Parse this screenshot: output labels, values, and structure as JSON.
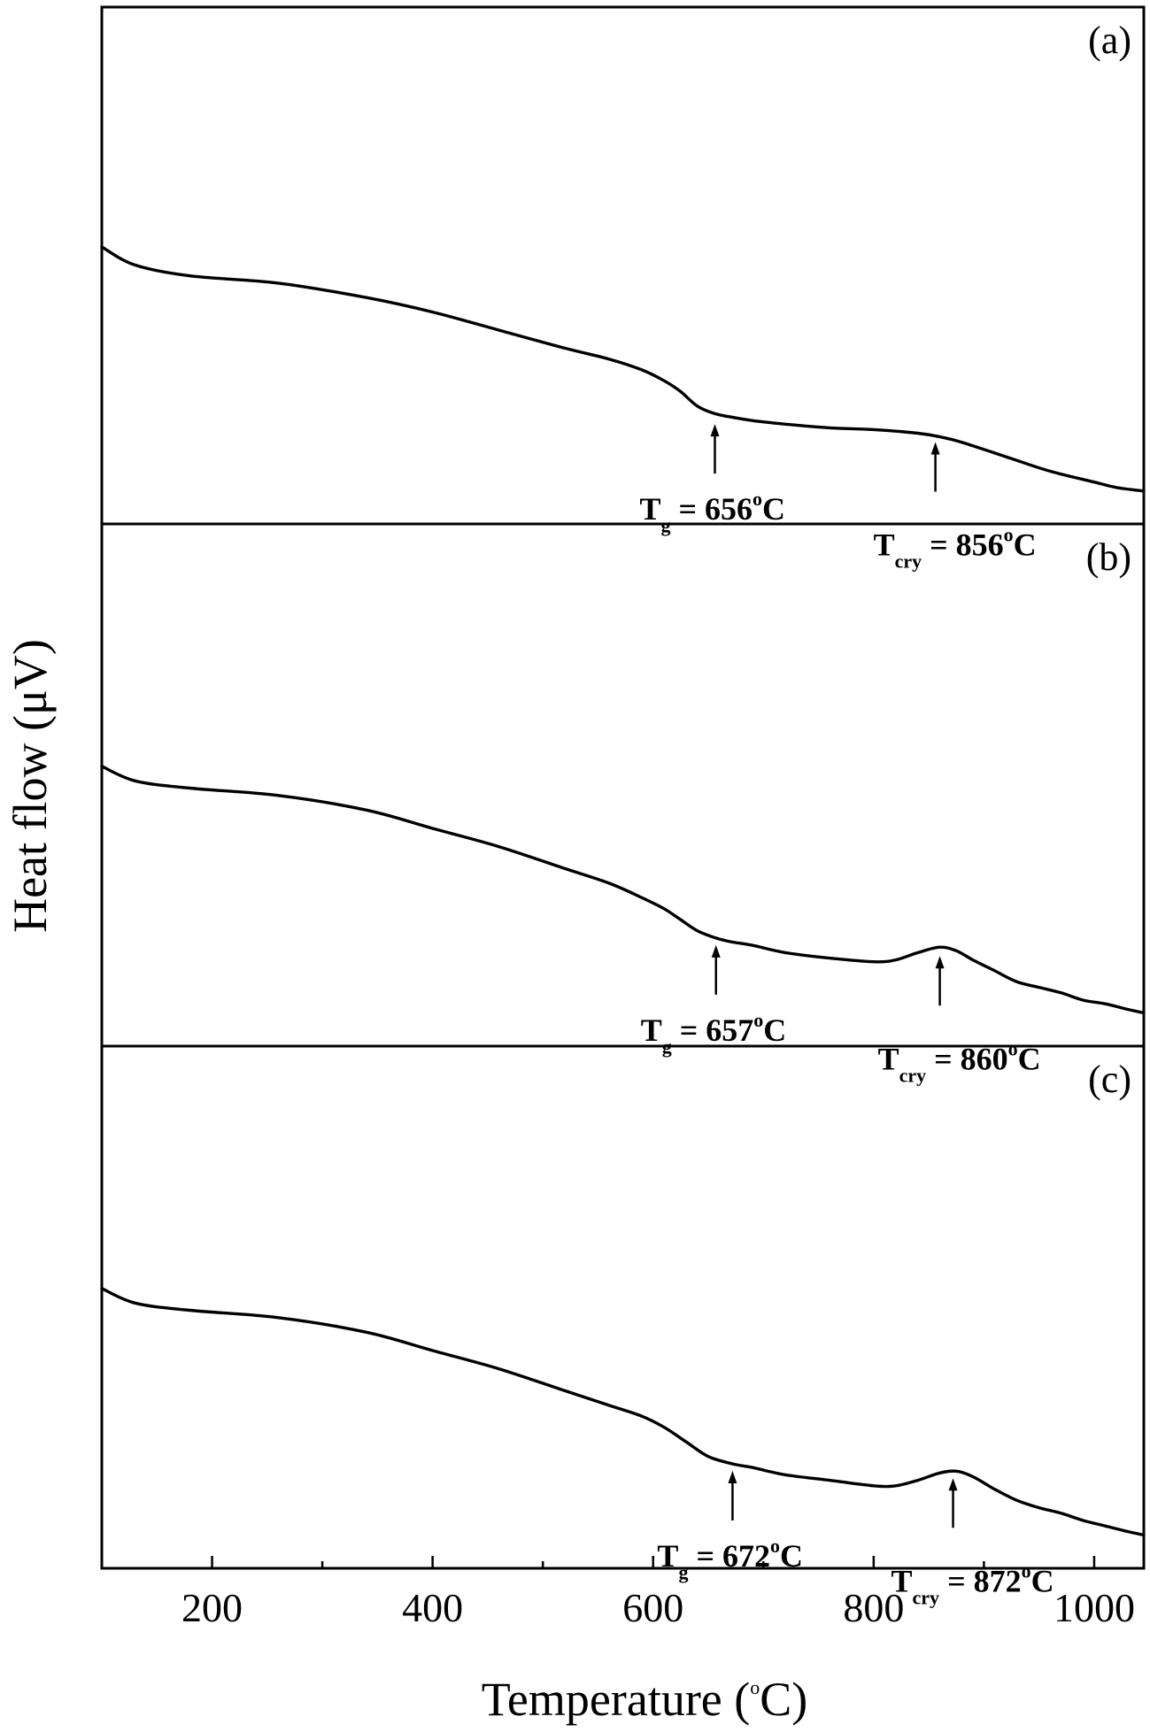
{
  "chart_data": {
    "type": "line",
    "xlabel": {
      "main": "Temperature (",
      "sup": "o",
      "tail": "C)"
    },
    "ylabel": "Heat flow (μV)",
    "xlim": [
      100,
      1045
    ],
    "xticks": [
      200,
      400,
      600,
      800,
      1000
    ],
    "xticks_minor": [
      300,
      500,
      700,
      900
    ],
    "panels": [
      {
        "label": "(a)",
        "series": [
          {
            "x": [
              100,
              130,
              180,
              260,
              340,
              400,
              460,
              520,
              560,
              590,
              610,
              625,
              640,
              655,
              670,
              690,
              720,
              760,
              800,
              840,
              860,
              880,
              920,
              960,
              1000,
              1020,
              1045
            ],
            "y": [
              0.68,
              0.63,
              0.6,
              0.58,
              0.54,
              0.5,
              0.45,
              0.4,
              0.37,
              0.34,
              0.31,
              0.28,
              0.24,
              0.22,
              0.21,
              0.2,
              0.19,
              0.18,
              0.175,
              0.165,
              0.155,
              0.14,
              0.1,
              0.06,
              0.03,
              0.015,
              0.005
            ]
          }
        ],
        "annotations": [
          {
            "x": 656,
            "y": 0.21,
            "symbol": "T",
            "sub": "g",
            "text": " = 656",
            "sup": "o",
            "unit": "C"
          },
          {
            "x": 856,
            "y": 0.16,
            "symbol": "T",
            "sub": "cry",
            "text": " = 856",
            "sup": "o",
            "unit": "C"
          }
        ]
      },
      {
        "label": "(b)",
        "series": [
          {
            "x": [
              100,
              130,
              180,
              260,
              340,
              400,
              460,
              520,
              560,
              590,
              610,
              625,
              640,
              657,
              670,
              690,
              720,
              760,
              800,
              820,
              840,
              860,
              875,
              890,
              910,
              930,
              950,
              970,
              990,
              1010,
              1030,
              1045
            ],
            "y": [
              0.68,
              0.64,
              0.62,
              0.6,
              0.56,
              0.51,
              0.46,
              0.4,
              0.36,
              0.32,
              0.29,
              0.26,
              0.23,
              0.21,
              0.2,
              0.19,
              0.17,
              0.155,
              0.145,
              0.15,
              0.17,
              0.185,
              0.175,
              0.15,
              0.12,
              0.09,
              0.075,
              0.06,
              0.04,
              0.03,
              0.015,
              0.005
            ]
          }
        ],
        "annotations": [
          {
            "x": 657,
            "y": 0.21,
            "symbol": "T",
            "sub": "g",
            "text": " = 657",
            "sup": "o",
            "unit": "C"
          },
          {
            "x": 860,
            "y": 0.18,
            "symbol": "T",
            "sub": "cry",
            "text": " = 860",
            "sup": "o",
            "unit": "C"
          }
        ]
      },
      {
        "label": "(c)",
        "series": [
          {
            "x": [
              100,
              130,
              180,
              260,
              340,
              400,
              460,
              520,
              560,
              590,
              610,
              630,
              650,
              672,
              690,
              720,
              760,
              800,
              820,
              840,
              860,
              875,
              890,
              910,
              930,
              950,
              970,
              990,
              1010,
              1030,
              1045
            ],
            "y": [
              0.68,
              0.64,
              0.62,
              0.6,
              0.56,
              0.51,
              0.46,
              0.4,
              0.36,
              0.33,
              0.3,
              0.26,
              0.22,
              0.2,
              0.19,
              0.17,
              0.155,
              0.14,
              0.14,
              0.155,
              0.175,
              0.18,
              0.165,
              0.13,
              0.1,
              0.08,
              0.065,
              0.045,
              0.03,
              0.015,
              0.005
            ]
          }
        ],
        "annotations": [
          {
            "x": 672,
            "y": 0.2,
            "symbol": "T",
            "sub": "g",
            "text": " = 672",
            "sup": "o",
            "unit": "C"
          },
          {
            "x": 872,
            "y": 0.18,
            "symbol": "T",
            "sub": "cry",
            "text": " = 872",
            "sup": "o",
            "unit": "C"
          }
        ]
      }
    ],
    "grid": false,
    "legend": "none"
  }
}
